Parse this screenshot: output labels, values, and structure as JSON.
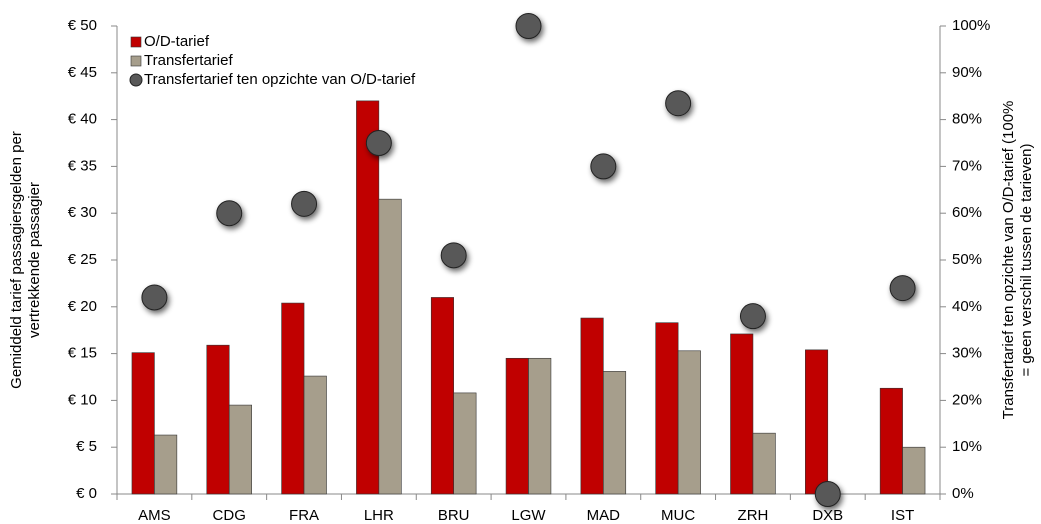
{
  "chart_data": {
    "type": "bar",
    "categories": [
      "AMS",
      "CDG",
      "FRA",
      "LHR",
      "BRU",
      "LGW",
      "MAD",
      "MUC",
      "ZRH",
      "DXB",
      "IST"
    ],
    "series": [
      {
        "name": "O/D-tarief",
        "color": "#c00000",
        "values": [
          15.1,
          15.9,
          20.4,
          42,
          21,
          14.5,
          18.8,
          18.3,
          17.1,
          15.4,
          11.3
        ]
      },
      {
        "name": "Transfertarief",
        "color": "#a69e8c",
        "values": [
          6.3,
          9.5,
          12.6,
          31.5,
          10.8,
          14.5,
          13.1,
          15.3,
          6.5,
          0,
          5.0
        ]
      },
      {
        "name": "Transfertarief ten opzichte van O/D-tarief",
        "color": "#595959",
        "type": "scatter",
        "axis": "y2",
        "values": [
          42,
          60,
          62,
          75,
          51,
          100,
          70,
          83.5,
          38,
          0,
          44
        ]
      }
    ],
    "ylabel": [
      "Gemiddeld tarief passagiersgelden per",
      "vertrekkende passagier"
    ],
    "y2label": [
      "Transfertarief ten opzichte van O/D-tarief (100%",
      "= geen verschil tussen de tarieven)"
    ],
    "ylim": [
      0,
      50
    ],
    "yticks": [
      {
        "value": 0,
        "label": "€ 0"
      },
      {
        "value": 5,
        "label": "€ 5"
      },
      {
        "value": 10,
        "label": "€ 10"
      },
      {
        "value": 15,
        "label": "€ 15"
      },
      {
        "value": 20,
        "label": "€ 20"
      },
      {
        "value": 25,
        "label": "€ 25"
      },
      {
        "value": 30,
        "label": "€ 30"
      },
      {
        "value": 35,
        "label": "€ 35"
      },
      {
        "value": 40,
        "label": "€ 40"
      },
      {
        "value": 45,
        "label": "€ 45"
      },
      {
        "value": 50,
        "label": "€ 50"
      }
    ],
    "y2lim": [
      0,
      100
    ],
    "y2ticks": [
      {
        "value": 0,
        "label": "0%"
      },
      {
        "value": 10,
        "label": "10%"
      },
      {
        "value": 20,
        "label": "20%"
      },
      {
        "value": 30,
        "label": "30%"
      },
      {
        "value": 40,
        "label": "40%"
      },
      {
        "value": 50,
        "label": "50%"
      },
      {
        "value": 60,
        "label": "60%"
      },
      {
        "value": 70,
        "label": "70%"
      },
      {
        "value": 80,
        "label": "80%"
      },
      {
        "value": 90,
        "label": "90%"
      },
      {
        "value": 100,
        "label": "100%"
      }
    ],
    "legend": "top-left",
    "grid": false
  }
}
